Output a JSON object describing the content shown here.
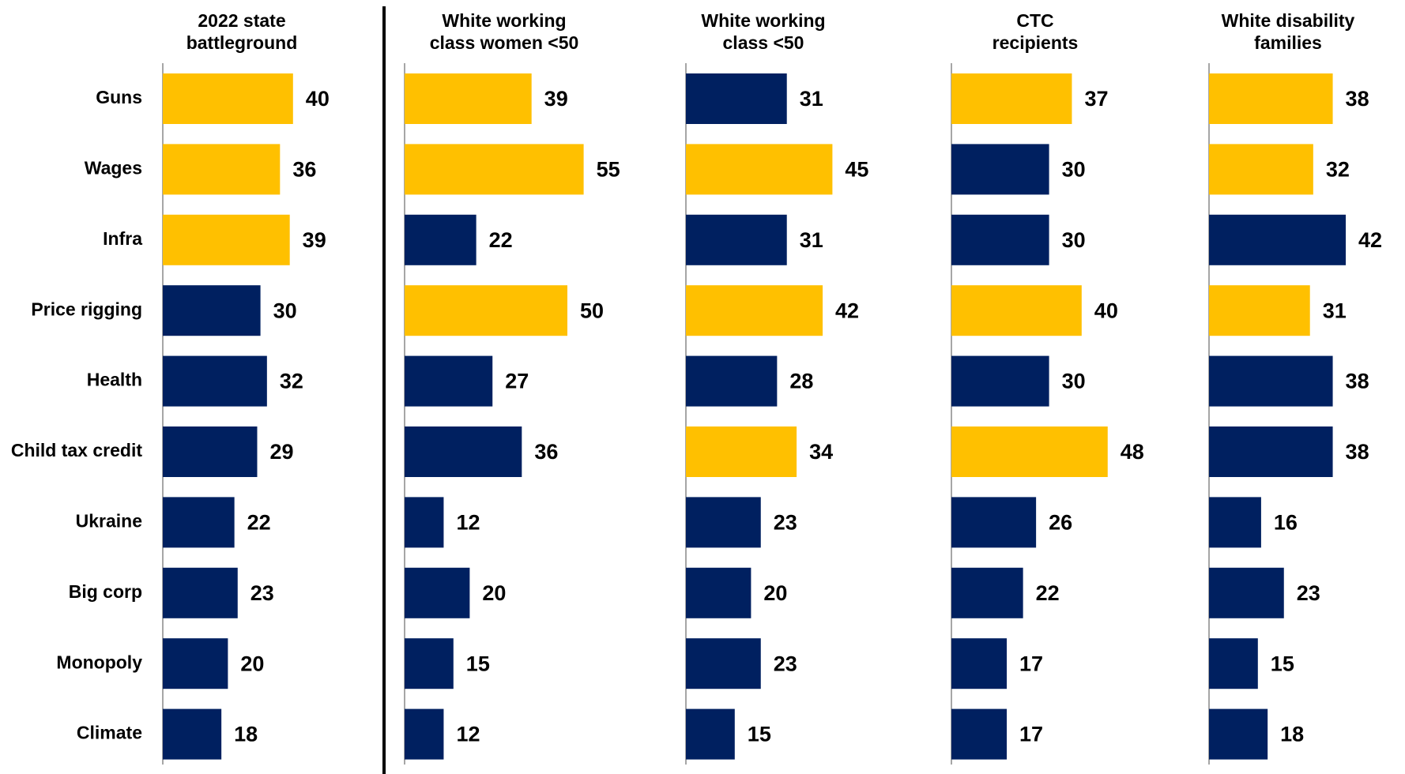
{
  "colors": {
    "highlight": "#FFC000",
    "base": "#002060",
    "axis": "#a6a6a6",
    "divider": "#000000"
  },
  "chart_data": {
    "type": "bar",
    "orientation": "horizontal",
    "categories": [
      "Guns",
      "Wages",
      "Infra",
      "Price rigging",
      "Health",
      "Child tax credit",
      "Ukraine",
      "Big corp",
      "Monopoly",
      "Climate"
    ],
    "series": [
      {
        "name": "2022 state battleground",
        "title_lines": [
          "2022 state",
          "battleground"
        ],
        "values": [
          40,
          36,
          39,
          30,
          32,
          29,
          22,
          23,
          20,
          18
        ],
        "highlighted": [
          true,
          true,
          true,
          false,
          false,
          false,
          false,
          false,
          false,
          false
        ]
      },
      {
        "name": "White working class women <50",
        "title_lines": [
          "White working",
          "class women <50"
        ],
        "values": [
          39,
          55,
          22,
          50,
          27,
          36,
          12,
          20,
          15,
          12
        ],
        "highlighted": [
          true,
          true,
          false,
          true,
          false,
          false,
          false,
          false,
          false,
          false
        ]
      },
      {
        "name": "White working class <50",
        "title_lines": [
          "White working",
          "class <50"
        ],
        "values": [
          31,
          45,
          31,
          42,
          28,
          34,
          23,
          20,
          23,
          15
        ],
        "highlighted": [
          false,
          true,
          false,
          true,
          false,
          true,
          false,
          false,
          false,
          false
        ]
      },
      {
        "name": "CTC recipients",
        "title_lines": [
          "CTC",
          "recipients"
        ],
        "values": [
          37,
          30,
          30,
          40,
          30,
          48,
          26,
          22,
          17,
          17
        ],
        "highlighted": [
          true,
          false,
          false,
          true,
          false,
          true,
          false,
          false,
          false,
          false
        ]
      },
      {
        "name": "White disability families",
        "title_lines": [
          "White disability",
          "families"
        ],
        "values": [
          38,
          32,
          42,
          31,
          38,
          38,
          16,
          23,
          15,
          18
        ],
        "highlighted": [
          true,
          true,
          false,
          true,
          false,
          false,
          false,
          false,
          false,
          false
        ]
      }
    ]
  }
}
